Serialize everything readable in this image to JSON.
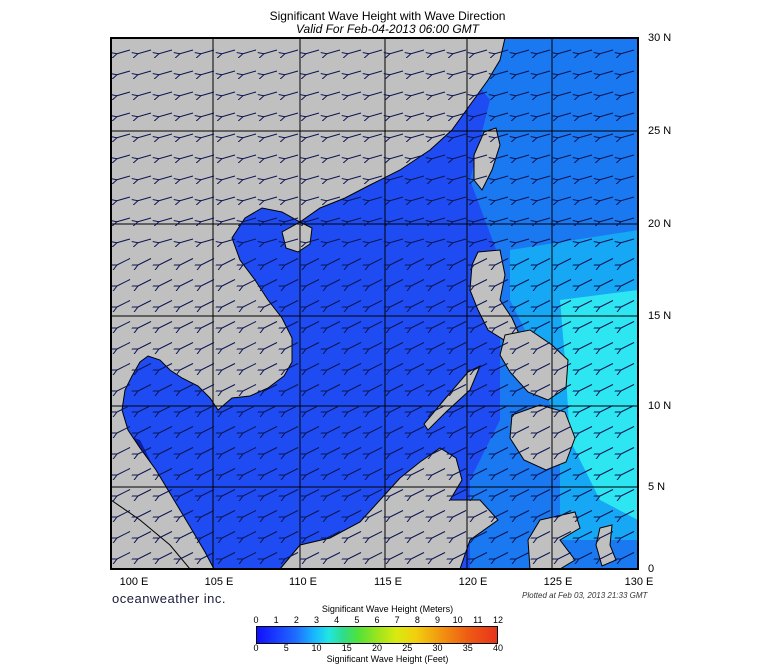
{
  "title": "Significant Wave Height with Wave Direction",
  "subtitle": "Valid For Feb-04-2013 06:00 GMT",
  "lat_labels": [
    "30 N",
    "25 N",
    "20 N",
    "15 N",
    "10 N",
    "5 N",
    "0"
  ],
  "lon_labels": [
    "100 E",
    "105 E",
    "110 E",
    "115 E",
    "120 E",
    "125 E",
    "130 E"
  ],
  "brand": "oceanweather inc.",
  "plotted": "Plotted at Feb 03, 2013 21:33 GMT",
  "colorbar": {
    "title_meters": "Significant Wave Height (Meters)",
    "title_feet": "Significant Wave Height (Feet)",
    "ticks_meters": [
      "0",
      "1",
      "2",
      "3",
      "4",
      "5",
      "6",
      "7",
      "8",
      "9",
      "10",
      "11",
      "12"
    ],
    "ticks_feet": [
      "0",
      "5",
      "10",
      "15",
      "20",
      "25",
      "30",
      "35",
      "40"
    ]
  },
  "colors": {
    "land": "#c0c0c0",
    "sea_deep": "#1e4cf2",
    "sea_mid": "#1a7af0",
    "sea_high": "#22e8f0",
    "grid": "#000000"
  }
}
